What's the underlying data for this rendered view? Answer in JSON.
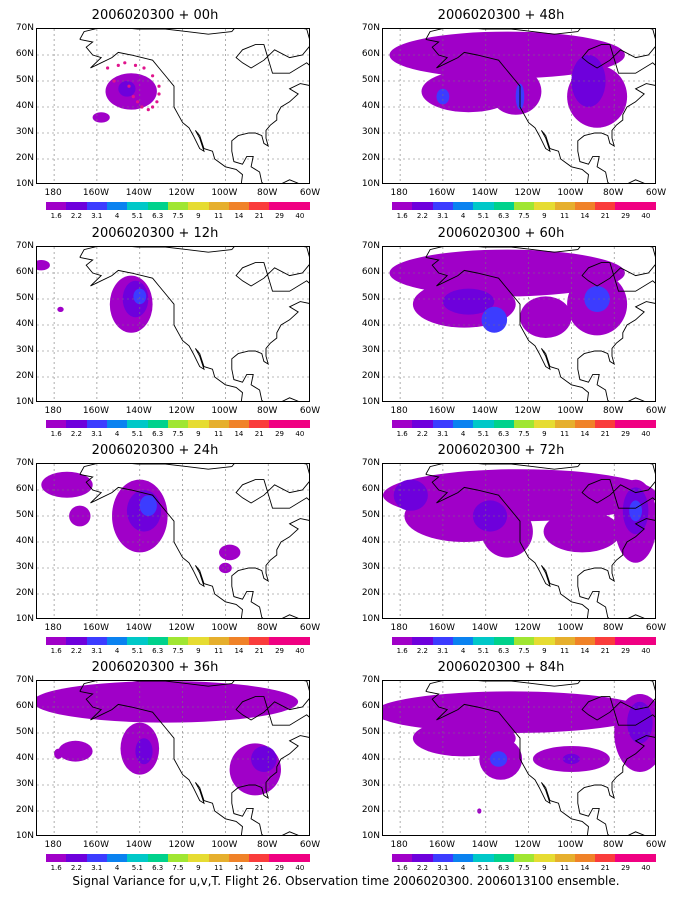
{
  "panels": [
    {
      "title": "2006020300 + 00h"
    },
    {
      "title": "2006020300 + 48h"
    },
    {
      "title": "2006020300 + 12h"
    },
    {
      "title": "2006020300 + 60h"
    },
    {
      "title": "2006020300 + 24h"
    },
    {
      "title": "2006020300 + 72h"
    },
    {
      "title": "2006020300 + 36h"
    },
    {
      "title": "2006020300 + 84h"
    }
  ],
  "lat_labels": [
    "70N",
    "60N",
    "50N",
    "40N",
    "30N",
    "20N",
    "10N"
  ],
  "lon_labels": [
    "180",
    "160W",
    "140W",
    "120W",
    "100W",
    "80W",
    "60W"
  ],
  "colorbar": {
    "levels": [
      "1.6",
      "2.2",
      "3.1",
      "4",
      "5.1",
      "6.3",
      "7.5",
      "9",
      "11",
      "14",
      "21",
      "29",
      "40"
    ],
    "colors": [
      "#a000c8",
      "#6e00dc",
      "#3c3cff",
      "#0a82f0",
      "#00c8c8",
      "#00d28c",
      "#a0e632",
      "#e6dc32",
      "#e6af2d",
      "#f08228",
      "#fa3c3c",
      "#f00082",
      "#f00082"
    ]
  },
  "caption": "Signal Variance for u,v,T. Flight 26. Observation time 2006020300. 2006013100 ensemble."
}
